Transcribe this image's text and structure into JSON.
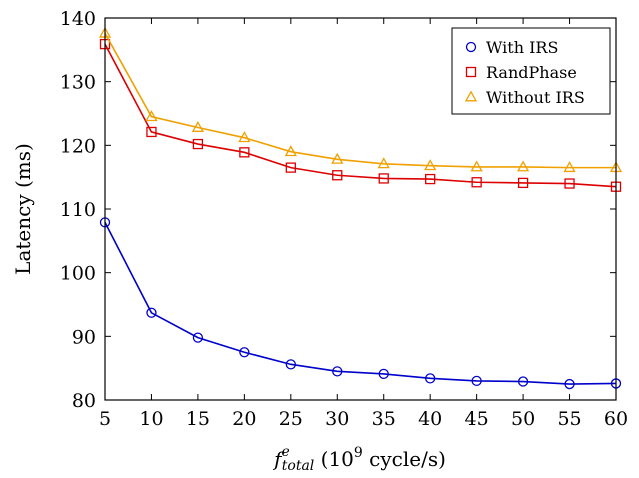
{
  "chart_data": {
    "type": "line",
    "title": "",
    "x": [
      5,
      10,
      15,
      20,
      25,
      30,
      35,
      40,
      45,
      50,
      55,
      60
    ],
    "xlim": [
      5,
      60
    ],
    "ylim": [
      80,
      140
    ],
    "xticks": [
      5,
      10,
      15,
      20,
      25,
      30,
      35,
      40,
      45,
      50,
      55,
      60
    ],
    "yticks": [
      80,
      90,
      100,
      110,
      120,
      130,
      140
    ],
    "xlabel": {
      "main": "f",
      "sup": "e",
      "sub": "total",
      "rest_open": " (10",
      "rest_sup": "9",
      "rest_close": " cycle/s)"
    },
    "ylabel": "Latency (ms)",
    "grid": false,
    "legend_position": "top-right",
    "series": [
      {
        "name": "With IRS",
        "color": "#0000cc",
        "marker": "circle",
        "values": [
          107.9,
          93.7,
          89.8,
          87.5,
          85.6,
          84.5,
          84.1,
          83.4,
          83.0,
          82.9,
          82.5,
          82.6
        ]
      },
      {
        "name": "RandPhase",
        "color": "#dd0000",
        "marker": "square",
        "values": [
          135.9,
          122.1,
          120.2,
          118.9,
          116.5,
          115.3,
          114.8,
          114.7,
          114.2,
          114.1,
          114.0,
          113.5
        ]
      },
      {
        "name": "Without IRS",
        "color": "#f0a000",
        "marker": "triangle",
        "values": [
          137.6,
          124.5,
          122.8,
          121.2,
          119.0,
          117.8,
          117.1,
          116.8,
          116.6,
          116.6,
          116.5,
          116.5
        ]
      }
    ]
  }
}
